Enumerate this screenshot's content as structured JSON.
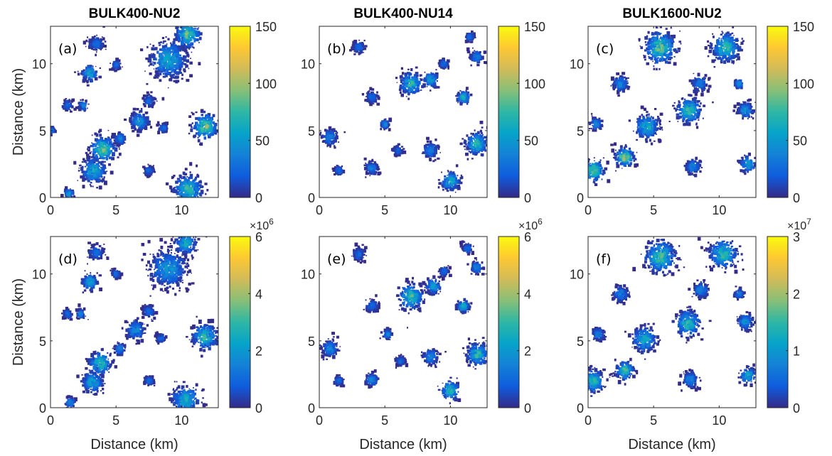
{
  "chart_data": [
    {
      "type": "heatmap",
      "panel": "(a)",
      "title": "BULK400-NU2",
      "xlabel": "",
      "ylabel": "Distance (km)",
      "xlim": [
        0,
        12.8
      ],
      "ylim": [
        0,
        12.8
      ],
      "xticks": [
        "0",
        "5",
        "10"
      ],
      "yticks": [
        "0",
        "5",
        "10"
      ],
      "colorbar": {
        "range": [
          0,
          150
        ],
        "ticks": [
          "0",
          "50",
          "100",
          "150"
        ],
        "multiplier": ""
      },
      "clusters": [
        [
          10.5,
          12.2,
          0.8,
          0.7
        ],
        [
          9,
          10.3,
          1.2,
          0.45
        ],
        [
          3,
          9.3,
          0.5,
          0.5
        ],
        [
          4,
          3.6,
          0.8,
          0.75
        ],
        [
          3.3,
          2,
          0.8,
          0.5
        ],
        [
          11.8,
          5.3,
          0.8,
          0.75
        ],
        [
          10.5,
          0.6,
          0.9,
          0.6
        ],
        [
          6.8,
          5.7,
          0.6,
          0.4
        ],
        [
          5.3,
          4.4,
          0.35,
          0.3
        ],
        [
          1.4,
          0.3,
          0.3,
          0.4
        ],
        [
          7.5,
          7.2,
          0.4,
          0.2
        ],
        [
          2.5,
          6.9,
          0.3,
          0.3
        ],
        [
          1.3,
          6.9,
          0.3,
          0.2
        ],
        [
          5,
          9.9,
          0.3,
          0.2
        ],
        [
          3.5,
          11.5,
          0.5,
          0.2
        ],
        [
          0.1,
          5,
          0.2,
          0.2
        ],
        [
          8.6,
          5.2,
          0.3,
          0.2
        ],
        [
          7.5,
          2,
          0.3,
          0.2
        ]
      ]
    },
    {
      "type": "heatmap",
      "panel": "(b)",
      "title": "BULK400-NU14",
      "xlabel": "",
      "ylabel": "",
      "xlim": [
        0,
        12.8
      ],
      "ylim": [
        0,
        12.8
      ],
      "xticks": [
        "0",
        "5",
        "10"
      ],
      "yticks": [
        "0",
        "5",
        "10"
      ],
      "colorbar": {
        "range": [
          0,
          150
        ],
        "ticks": [
          "0",
          "50",
          "100",
          "150"
        ],
        "multiplier": ""
      },
      "clusters": [
        [
          7,
          8.5,
          0.7,
          0.6
        ],
        [
          8.5,
          8.8,
          0.5,
          0.4
        ],
        [
          12,
          4,
          0.7,
          0.6
        ],
        [
          10,
          1.2,
          0.6,
          0.5
        ],
        [
          0.8,
          4.5,
          0.5,
          0.3
        ],
        [
          11,
          7.5,
          0.4,
          0.5
        ],
        [
          4,
          7.5,
          0.4,
          0.2
        ],
        [
          5,
          5.5,
          0.3,
          0.3
        ],
        [
          8.5,
          3.5,
          0.5,
          0.3
        ],
        [
          4,
          2.2,
          0.4,
          0.3
        ],
        [
          12,
          10.5,
          0.4,
          0.3
        ],
        [
          3,
          11.2,
          0.4,
          0.2
        ],
        [
          1.5,
          2,
          0.3,
          0.2
        ],
        [
          6,
          3.5,
          0.3,
          0.2
        ],
        [
          11.5,
          12,
          0.3,
          0.2
        ],
        [
          9.5,
          10,
          0.3,
          0.2
        ]
      ]
    },
    {
      "type": "heatmap",
      "panel": "(c)",
      "title": "BULK1600-NU2",
      "xlabel": "",
      "ylabel": "",
      "xlim": [
        0,
        12.8
      ],
      "ylim": [
        0,
        12.8
      ],
      "xticks": [
        "0",
        "5",
        "10"
      ],
      "yticks": [
        "0",
        "5",
        "10"
      ],
      "colorbar": {
        "range": [
          0,
          150
        ],
        "ticks": [
          "0",
          "50",
          "100",
          "150"
        ],
        "multiplier": ""
      },
      "clusters": [
        [
          5.5,
          11.2,
          1,
          0.7
        ],
        [
          10.5,
          11.2,
          0.9,
          0.6
        ],
        [
          7.7,
          6.5,
          0.8,
          0.6
        ],
        [
          4.5,
          5.3,
          0.8,
          0.5
        ],
        [
          2.8,
          3,
          0.6,
          0.8
        ],
        [
          0.4,
          2,
          0.7,
          0.7
        ],
        [
          12.2,
          2.5,
          0.5,
          0.5
        ],
        [
          8,
          2.3,
          0.5,
          0.3
        ],
        [
          12,
          6.5,
          0.5,
          0.4
        ],
        [
          2.5,
          8.5,
          0.5,
          0.3
        ],
        [
          0.6,
          5.5,
          0.4,
          0.3
        ],
        [
          8.5,
          8.5,
          0.5,
          0.3
        ],
        [
          11.5,
          8.5,
          0.3,
          0.3
        ]
      ]
    },
    {
      "type": "heatmap",
      "panel": "(d)",
      "title": "",
      "xlabel": "Distance (km)",
      "ylabel": "Distance (km)",
      "xlim": [
        0,
        12.8
      ],
      "ylim": [
        0,
        12.8
      ],
      "xticks": [
        "0",
        "5",
        "10"
      ],
      "yticks": [
        "0",
        "5",
        "10"
      ],
      "colorbar": {
        "range": [
          0,
          6
        ],
        "ticks": [
          "0",
          "2",
          "4",
          "6"
        ],
        "multiplier": "6"
      },
      "clusters": [
        [
          10.3,
          12.3,
          0.7,
          0.5
        ],
        [
          9,
          10.4,
          1.2,
          0.4
        ],
        [
          3,
          9.4,
          0.5,
          0.45
        ],
        [
          3.8,
          3.3,
          0.7,
          0.65
        ],
        [
          3.2,
          1.9,
          0.7,
          0.45
        ],
        [
          11.8,
          5.3,
          0.8,
          0.6
        ],
        [
          10.3,
          0.6,
          0.9,
          0.5
        ],
        [
          6.5,
          5.8,
          0.6,
          0.35
        ],
        [
          5.3,
          4.4,
          0.35,
          0.3
        ],
        [
          1.5,
          0.4,
          0.3,
          0.35
        ],
        [
          7.5,
          7.2,
          0.4,
          0.2
        ],
        [
          2.3,
          7,
          0.3,
          0.3
        ],
        [
          1.3,
          7,
          0.3,
          0.2
        ],
        [
          5,
          10,
          0.3,
          0.2
        ],
        [
          3.5,
          11.6,
          0.5,
          0.2
        ],
        [
          8.4,
          5.2,
          0.3,
          0.2
        ],
        [
          7.5,
          2,
          0.3,
          0.2
        ]
      ]
    },
    {
      "type": "heatmap",
      "panel": "(e)",
      "title": "",
      "xlabel": "Distance (km)",
      "ylabel": "",
      "xlim": [
        0,
        12.8
      ],
      "ylim": [
        0,
        12.8
      ],
      "xticks": [
        "0",
        "5",
        "10"
      ],
      "yticks": [
        "0",
        "5",
        "10"
      ],
      "colorbar": {
        "range": [
          0,
          6
        ],
        "ticks": [
          "0",
          "2",
          "4",
          "6"
        ],
        "multiplier": "6"
      },
      "clusters": [
        [
          7,
          8.3,
          0.8,
          0.65
        ],
        [
          8.7,
          9.1,
          0.5,
          0.4
        ],
        [
          12.1,
          4,
          0.7,
          0.6
        ],
        [
          10,
          1.3,
          0.6,
          0.55
        ],
        [
          0.8,
          4.4,
          0.5,
          0.35
        ],
        [
          11,
          7.6,
          0.4,
          0.5
        ],
        [
          4,
          7.6,
          0.4,
          0.2
        ],
        [
          5.2,
          5.5,
          0.3,
          0.3
        ],
        [
          8.5,
          3.8,
          0.5,
          0.3
        ],
        [
          4,
          2.1,
          0.4,
          0.3
        ],
        [
          12,
          10.5,
          0.4,
          0.3
        ],
        [
          3,
          11.5,
          0.4,
          0.2
        ],
        [
          1.5,
          2,
          0.3,
          0.2
        ],
        [
          6.2,
          3.5,
          0.3,
          0.2
        ],
        [
          11.3,
          11.9,
          0.3,
          0.2
        ],
        [
          9.5,
          10.2,
          0.3,
          0.2
        ]
      ]
    },
    {
      "type": "heatmap",
      "panel": "(f)",
      "title": "",
      "xlabel": "Distance (km)",
      "ylabel": "",
      "xlim": [
        0,
        12.8
      ],
      "ylim": [
        0,
        12.8
      ],
      "xticks": [
        "0",
        "5",
        "10"
      ],
      "yticks": [
        "0",
        "5",
        "10"
      ],
      "colorbar": {
        "range": [
          0,
          3
        ],
        "ticks": [
          "0",
          "1",
          "2",
          "3"
        ],
        "multiplier": "7"
      },
      "clusters": [
        [
          5.5,
          11.3,
          1,
          0.65
        ],
        [
          10.3,
          11.5,
          0.9,
          0.6
        ],
        [
          7.6,
          6.3,
          0.8,
          0.6
        ],
        [
          4.3,
          5.1,
          0.8,
          0.5
        ],
        [
          2.8,
          2.8,
          0.6,
          0.65
        ],
        [
          0.4,
          2,
          0.7,
          0.6
        ],
        [
          12.2,
          2.4,
          0.5,
          0.5
        ],
        [
          7.8,
          2.1,
          0.5,
          0.3
        ],
        [
          12,
          6.4,
          0.5,
          0.4
        ],
        [
          2.5,
          8.5,
          0.5,
          0.3
        ],
        [
          0.8,
          5.5,
          0.4,
          0.3
        ],
        [
          8.6,
          8.8,
          0.5,
          0.3
        ],
        [
          11.5,
          8.5,
          0.3,
          0.3
        ]
      ]
    }
  ],
  "colors": {
    "colormap": "parula",
    "parula": [
      "#352A87",
      "#0F5CDD",
      "#1481D6",
      "#06A4CA",
      "#2EB7A4",
      "#87BF77",
      "#D1BB59",
      "#FEC832",
      "#F9FB0E"
    ],
    "axis": "#262626"
  }
}
